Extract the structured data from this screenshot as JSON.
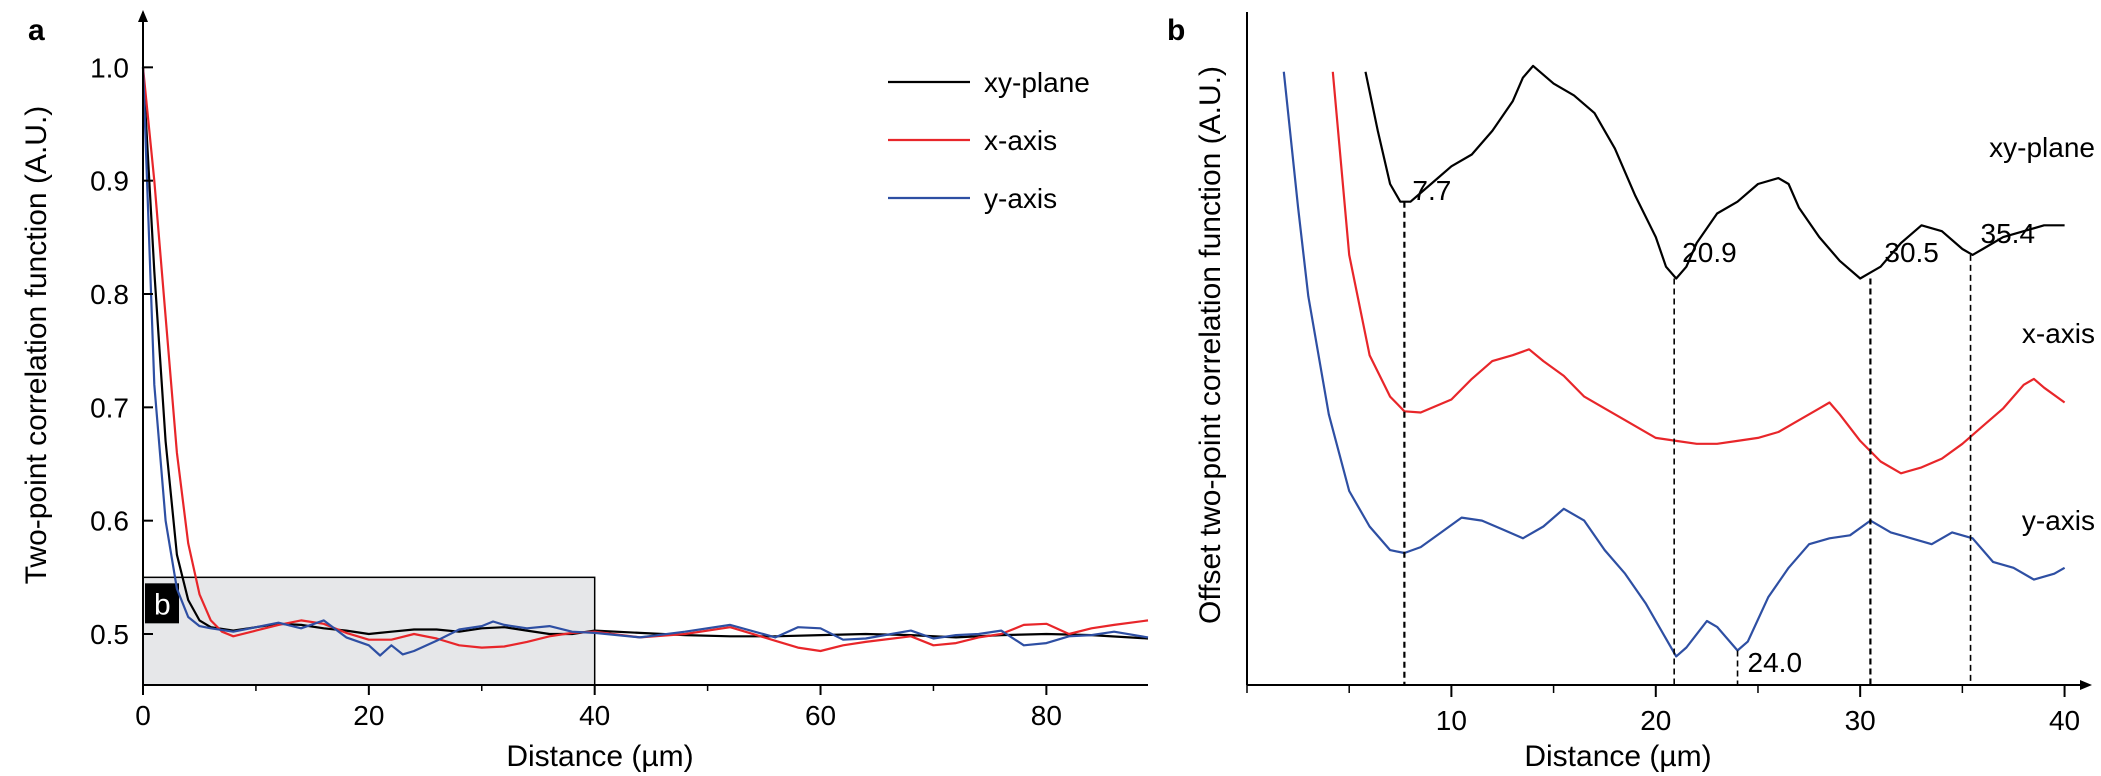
{
  "chart_data": [
    {
      "panel": "a",
      "type": "line",
      "xlabel": "Distance (µm)",
      "ylabel": "Two-point correlation function (A.U.)",
      "xlim": [
        0,
        89
      ],
      "ylim": [
        0.455,
        1.04
      ],
      "xticks": [
        "0",
        "20",
        "40",
        "60",
        "80"
      ],
      "yticks": [
        "0.5",
        "0.6",
        "0.7",
        "0.8",
        "0.9",
        "1.0"
      ],
      "legend_placement": "top-right",
      "inset_box": {
        "label": "b",
        "x_range": [
          0,
          40
        ],
        "y_range": [
          0.455,
          0.55
        ]
      },
      "series": [
        {
          "name": "xy-plane",
          "color": "#000000",
          "x": [
            0,
            1,
            2,
            3,
            4,
            5,
            6,
            8,
            10,
            12,
            14,
            16,
            18,
            20,
            22,
            24,
            26,
            28,
            30,
            32,
            34,
            36,
            38,
            40,
            44,
            48,
            52,
            56,
            60,
            64,
            68,
            72,
            76,
            80,
            84,
            89
          ],
          "values": [
            1.0,
            0.82,
            0.67,
            0.57,
            0.53,
            0.512,
            0.506,
            0.503,
            0.506,
            0.509,
            0.508,
            0.505,
            0.503,
            0.5,
            0.502,
            0.504,
            0.504,
            0.502,
            0.505,
            0.506,
            0.503,
            0.5,
            0.5,
            0.503,
            0.501,
            0.499,
            0.498,
            0.498,
            0.499,
            0.5,
            0.499,
            0.497,
            0.499,
            0.5,
            0.499,
            0.496
          ]
        },
        {
          "name": "x-axis",
          "color": "#e8262a",
          "x": [
            0,
            1,
            2,
            3,
            4,
            5,
            6,
            7,
            8,
            10,
            12,
            14,
            16,
            18,
            20,
            22,
            24,
            26,
            28,
            30,
            32,
            34,
            36,
            38,
            40,
            44,
            48,
            52,
            56,
            58,
            60,
            62,
            64,
            68,
            70,
            72,
            74,
            76,
            78,
            80,
            82,
            84,
            86,
            89
          ],
          "values": [
            1.0,
            0.9,
            0.78,
            0.66,
            0.58,
            0.535,
            0.512,
            0.502,
            0.498,
            0.503,
            0.508,
            0.512,
            0.509,
            0.501,
            0.495,
            0.495,
            0.5,
            0.496,
            0.49,
            0.488,
            0.489,
            0.493,
            0.498,
            0.501,
            0.502,
            0.497,
            0.5,
            0.506,
            0.494,
            0.488,
            0.485,
            0.49,
            0.493,
            0.498,
            0.49,
            0.492,
            0.497,
            0.5,
            0.508,
            0.509,
            0.5,
            0.505,
            0.508,
            0.512
          ]
        },
        {
          "name": "y-axis",
          "color": "#2e4fa3",
          "x": [
            0,
            1,
            2,
            3,
            4,
            5,
            6,
            8,
            10,
            12,
            14,
            16,
            18,
            20,
            21,
            22,
            23,
            24,
            26,
            28,
            30,
            31,
            32,
            34,
            36,
            38,
            40,
            44,
            48,
            52,
            56,
            58,
            60,
            62,
            64,
            68,
            70,
            72,
            74,
            76,
            78,
            80,
            82,
            84,
            86,
            89
          ],
          "values": [
            1.0,
            0.72,
            0.6,
            0.54,
            0.515,
            0.507,
            0.505,
            0.502,
            0.506,
            0.51,
            0.505,
            0.512,
            0.497,
            0.49,
            0.481,
            0.49,
            0.482,
            0.485,
            0.494,
            0.504,
            0.507,
            0.511,
            0.508,
            0.505,
            0.507,
            0.502,
            0.501,
            0.497,
            0.502,
            0.508,
            0.497,
            0.506,
            0.505,
            0.495,
            0.496,
            0.503,
            0.496,
            0.499,
            0.5,
            0.503,
            0.49,
            0.492,
            0.498,
            0.499,
            0.502,
            0.497
          ]
        }
      ]
    },
    {
      "panel": "b",
      "type": "line",
      "xlabel": "Distance (µm)",
      "ylabel": "Offset two-point correlation function (A.U.)",
      "xlim": [
        0,
        41
      ],
      "xticks": [
        "10",
        "20",
        "30",
        "40"
      ],
      "yticks": [],
      "annotations": [
        "7.7",
        "20.9",
        "30.5",
        "35.4",
        "24.0"
      ],
      "annotation_values": [
        7.7,
        20.9,
        30.5,
        35.4,
        24.0
      ],
      "series": [
        {
          "name": "xy-plane",
          "label": "xy-plane",
          "color": "#000000",
          "x": [
            5.8,
            6.4,
            7,
            7.5,
            8,
            9,
            10,
            11,
            12,
            13,
            13.5,
            14,
            15,
            16,
            17,
            18,
            19,
            20,
            20.5,
            21,
            21.5,
            22,
            23,
            24,
            25,
            26,
            26.5,
            27,
            28,
            29,
            30,
            30.5,
            31,
            32,
            33,
            34,
            35,
            35.5,
            36,
            37,
            38,
            39,
            40
          ],
          "values": [
            93,
            83,
            74,
            71,
            71,
            74,
            77,
            79,
            83,
            88,
            92,
            94,
            91,
            89,
            86,
            80,
            72,
            65,
            60,
            58,
            60,
            64,
            69,
            71,
            74,
            75,
            74,
            70,
            65,
            61,
            58,
            59,
            60,
            64,
            67,
            66,
            63,
            62,
            63,
            65,
            66,
            67,
            67
          ]
        },
        {
          "name": "x-axis",
          "label": "x-axis",
          "color": "#e8262a",
          "x": [
            4.2,
            5,
            6,
            7,
            7.7,
            8.5,
            10,
            11,
            12,
            13,
            13.8,
            14.5,
            15.5,
            16.5,
            17.5,
            18.5,
            20,
            21,
            22,
            23,
            24,
            25,
            26,
            27,
            28,
            28.5,
            29,
            30,
            31,
            32,
            33,
            34,
            35,
            36,
            37,
            38,
            38.5,
            39,
            40
          ],
          "values": [
            93,
            62,
            45,
            38,
            35.5,
            35.3,
            37.5,
            41,
            44,
            45,
            46,
            44,
            41.5,
            38,
            36,
            34,
            31,
            30.5,
            30,
            30,
            30.5,
            31,
            32,
            34,
            36,
            37,
            35,
            30.5,
            27,
            25,
            26,
            27.5,
            30,
            33,
            36,
            40,
            41,
            39.5,
            37
          ]
        },
        {
          "name": "y-axis",
          "label": "y-axis",
          "color": "#2e4fa3",
          "x": [
            1.8,
            2.5,
            3,
            4,
            5,
            6,
            7,
            7.7,
            8.5,
            9.5,
            10.5,
            11.5,
            12.5,
            13.5,
            14.5,
            15.5,
            16.5,
            17.5,
            18.5,
            19.5,
            20.5,
            21,
            21.5,
            22.5,
            23,
            24,
            24.5,
            25.5,
            26.5,
            27.5,
            28.5,
            29.5,
            30.5,
            31.5,
            32.5,
            33.5,
            34.5,
            35.5,
            36.5,
            37.5,
            38.5,
            39.5,
            40
          ],
          "values": [
            93,
            70,
            55,
            35,
            22,
            16,
            12,
            11.5,
            12.5,
            15,
            17.5,
            17,
            15.5,
            14,
            16,
            19,
            17,
            12,
            8,
            3,
            -3,
            -6,
            -4.5,
            0,
            -1,
            -5,
            -3.5,
            4,
            9,
            13,
            14,
            14.5,
            17,
            15,
            14,
            13,
            15,
            14,
            10,
            9,
            7,
            8,
            9
          ]
        }
      ]
    }
  ]
}
